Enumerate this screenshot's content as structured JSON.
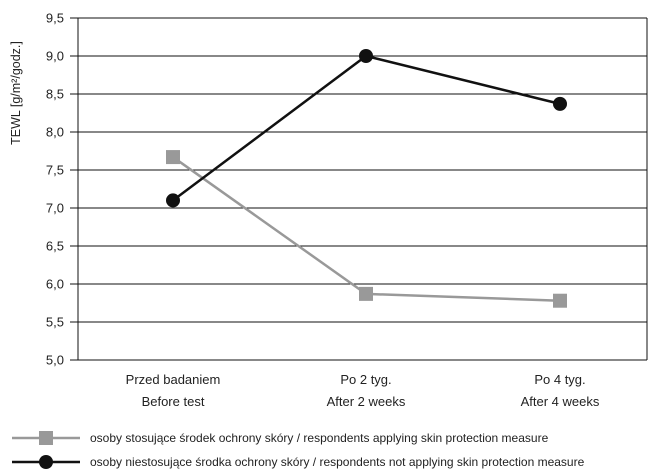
{
  "chart_data": {
    "type": "line",
    "ylabel": "TEWL [g/m²/godz.]",
    "ylim": [
      5.0,
      9.5
    ],
    "yticks": [
      "5,0",
      "5,5",
      "6,0",
      "6,5",
      "7,0",
      "7,5",
      "8,0",
      "8,5",
      "9,0",
      "9,5"
    ],
    "ytick_values": [
      5.0,
      5.5,
      6.0,
      6.5,
      7.0,
      7.5,
      8.0,
      8.5,
      9.0,
      9.5
    ],
    "categories": [
      {
        "line1": "Przed badaniem",
        "line2": "Before test"
      },
      {
        "line1": "Po 2 tyg.",
        "line2": "After 2 weeks"
      },
      {
        "line1": "Po 4 tyg.",
        "line2": "After 4 weeks"
      }
    ],
    "grid": "horizontal",
    "legend_position": "bottom",
    "series": [
      {
        "name": "osoby stosujące środek ochrony skóry / respondents applying skin protection measure",
        "values": [
          7.67,
          5.87,
          5.78
        ],
        "color": "#999999",
        "marker": "square"
      },
      {
        "name": "osoby niestosujące środka ochrony skóry / respondents not applying skin protection measure",
        "values": [
          7.1,
          9.0,
          8.37
        ],
        "color": "#111111",
        "marker": "circle"
      }
    ]
  }
}
